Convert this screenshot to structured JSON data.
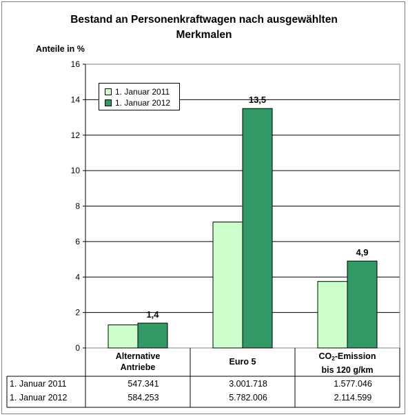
{
  "title_line1": "Bestand an Personenkraftwagen nach ausgewählten",
  "title_line2": "Merkmalen",
  "ylabel": "Anteile in %",
  "legend": [
    "1. Januar 2011",
    "1. Januar 2012"
  ],
  "colors": {
    "series_2011": "#ccffcc",
    "series_2012": "#339966",
    "grid": "#000000"
  },
  "categories": [
    {
      "line1": "Alternative",
      "line2": "Antriebe"
    },
    {
      "line1": "Euro 5",
      "line2": ""
    },
    {
      "line1": "CO",
      "sub": "2",
      "line1_rest": "-Emission",
      "line2": "bis 120 g/km"
    }
  ],
  "table": {
    "rows": [
      {
        "label": "1. Januar 2011",
        "values": [
          "547.341",
          "3.001.718",
          "1.577.046"
        ]
      },
      {
        "label": "1. Januar 2012",
        "values": [
          "584.253",
          "5.782.006",
          "2.114.599"
        ]
      }
    ]
  },
  "chart_data": {
    "type": "bar",
    "title": "Bestand an Personenkraftwagen nach ausgewählten Merkmalen",
    "ylabel": "Anteile in %",
    "categories": [
      "Alternative Antriebe",
      "Euro 5",
      "CO2-Emission bis 120 g/km"
    ],
    "series": [
      {
        "name": "1. Januar 2011",
        "values": [
          1.3,
          7.1,
          3.75
        ]
      },
      {
        "name": "1. Januar 2012",
        "values": [
          1.4,
          13.5,
          4.9
        ]
      }
    ],
    "data_labels": [
      "1,4",
      "13,5",
      "4,9"
    ],
    "ylim": [
      0,
      16
    ],
    "yticks": [
      "0",
      "2",
      "4",
      "6",
      "8",
      "10",
      "12",
      "14",
      "16"
    ],
    "grid": true,
    "legend_position": "top-left"
  }
}
